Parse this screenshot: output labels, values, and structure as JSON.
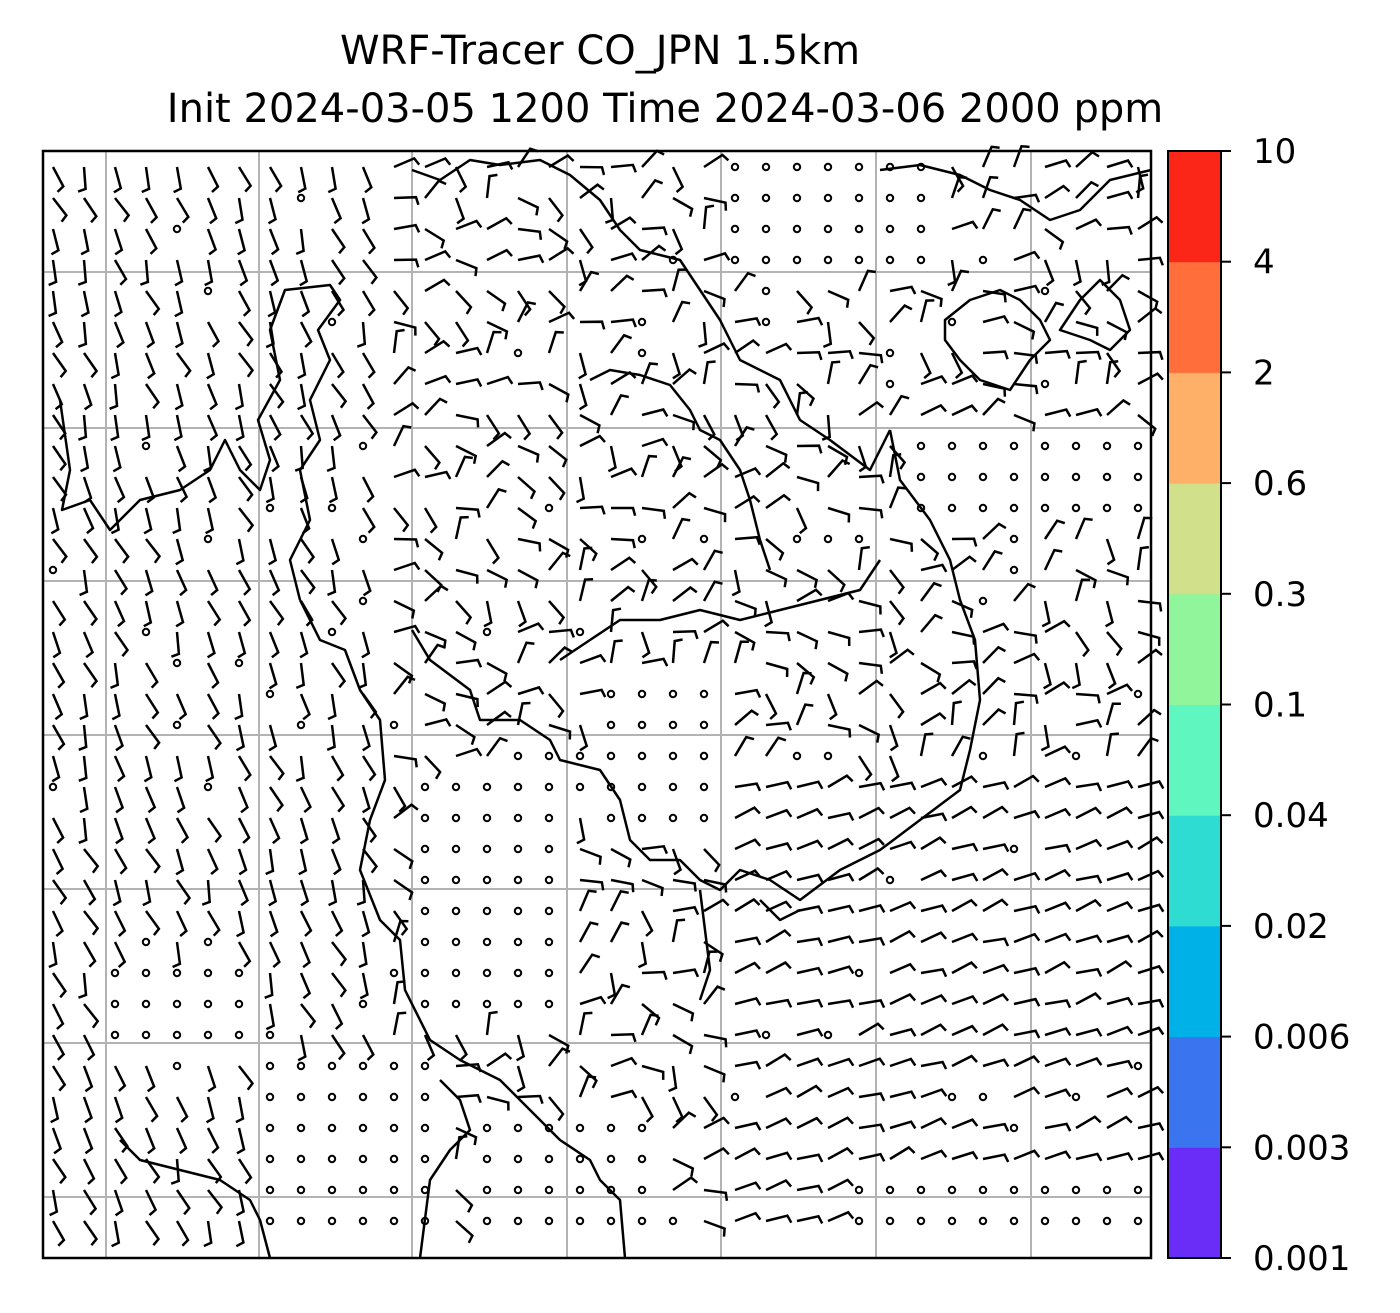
{
  "title": {
    "line1": "WRF-Tracer CO_JPN 1.5km",
    "line2": "Init 2024-03-05 1200 Time 2024-03-06 2000 ppm"
  },
  "colorbar": {
    "levels": [
      "0.001",
      "0.003",
      "0.006",
      "0.02",
      "0.04",
      "0.1",
      "0.3",
      "0.6",
      "2",
      "4",
      "10"
    ],
    "colors": [
      "#6a2cf7",
      "#3b74ef",
      "#00b1e8",
      "#2fdcd1",
      "#5ff7bf",
      "#90f59b",
      "#d1e08a",
      "#feb068",
      "#ff6e3b",
      "#fb2618"
    ]
  },
  "map": {
    "background": "#ffffff",
    "gridline_color": "#b3b3b3",
    "symbols": "wind barbs and calm-wind circles over coastline outlines"
  }
}
